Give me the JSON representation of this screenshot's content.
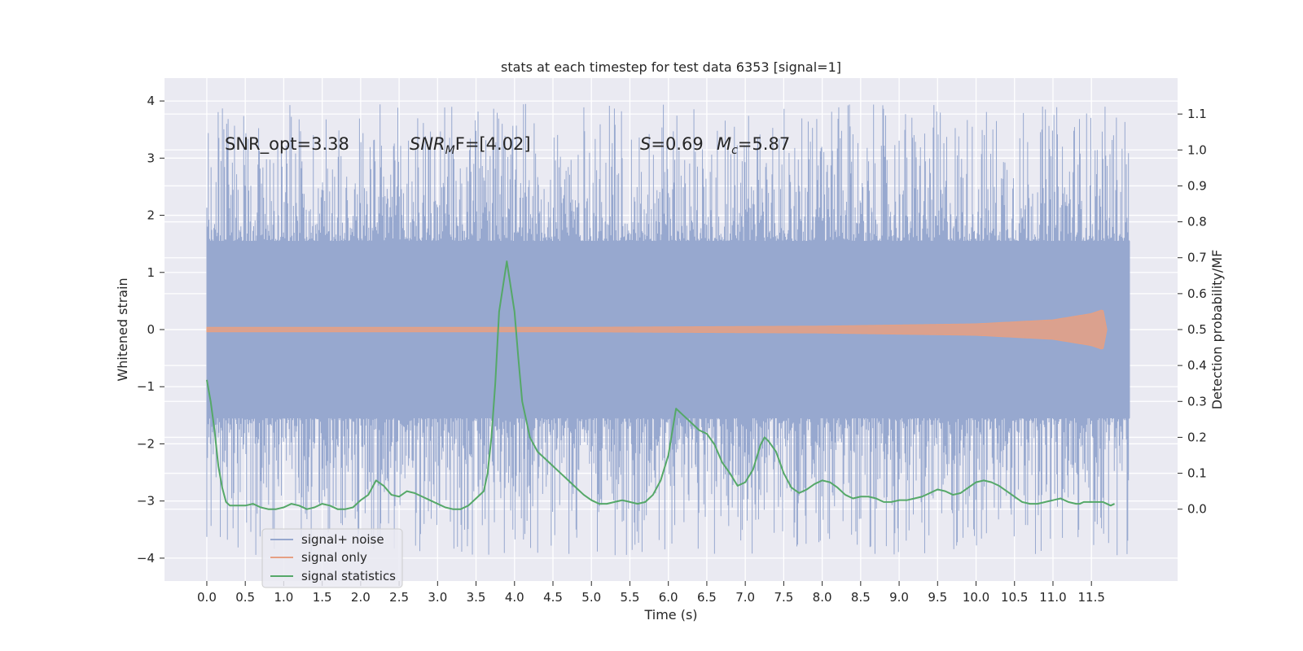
{
  "chart_data": {
    "type": "line",
    "title": "stats at each timestep for test data 6353 [signal=1]",
    "xlabel": "Time (s)",
    "ylabel_left": "Whitened strain",
    "ylabel_right": "Detection probability/MF",
    "xlim": [
      -0.55,
      12.62
    ],
    "ylim_left": [
      -4.4,
      4.4
    ],
    "ylim_right": [
      -0.2,
      1.2
    ],
    "x_ticks": [
      "0.0",
      "0.5",
      "1.0",
      "1.5",
      "2.0",
      "2.5",
      "3.0",
      "3.5",
      "4.0",
      "4.5",
      "5.0",
      "5.5",
      "6.0",
      "6.5",
      "7.0",
      "7.5",
      "8.0",
      "8.5",
      "9.0",
      "9.5",
      "10.0",
      "10.5",
      "11.0",
      "11.5"
    ],
    "y_ticks_left": [
      "4",
      "3",
      "2",
      "1",
      "0",
      "−1",
      "−2",
      "−3",
      "−4"
    ],
    "y_ticks_right": [
      "1.1",
      "1.0",
      "0.9",
      "0.8",
      "0.7",
      "0.6",
      "0.5",
      "0.4",
      "0.3",
      "0.2",
      "0.1",
      "0.0"
    ],
    "grid": true,
    "legend_position": "lower-left",
    "annotations": {
      "snr_opt": "SNR_opt=3.38",
      "snr_mf_base": "SNR",
      "snr_mf_sub": "M",
      "snr_mf_rest": "F=[4.02]",
      "s_label": "S",
      "s_value": "=0.69",
      "mc_base": "M",
      "mc_sub": "c",
      "mc_value": "=5.87"
    },
    "series": [
      {
        "name": "signal+ noise",
        "color": "#97a8cf",
        "axis": "left",
        "style": "noise-band",
        "x_range": [
          0.0,
          12.0
        ],
        "dense_band": [
          -1.55,
          1.55
        ],
        "spike_range": [
          -4.0,
          4.0
        ]
      },
      {
        "name": "signal only",
        "color": "#e6a083",
        "axis": "left",
        "style": "chirp",
        "x_range": [
          0.0,
          11.7
        ],
        "amplitude_profile": [
          {
            "x": 0.0,
            "amp": 0.04
          },
          {
            "x": 5.0,
            "amp": 0.04
          },
          {
            "x": 8.0,
            "amp": 0.06
          },
          {
            "x": 10.0,
            "amp": 0.1
          },
          {
            "x": 11.0,
            "amp": 0.17
          },
          {
            "x": 11.5,
            "amp": 0.28
          },
          {
            "x": 11.65,
            "amp": 0.35
          },
          {
            "x": 11.7,
            "amp": 0.0
          }
        ]
      },
      {
        "name": "signal statistics",
        "color": "#55a868",
        "axis": "right",
        "style": "line",
        "points": [
          [
            0.0,
            0.36
          ],
          [
            0.05,
            0.3
          ],
          [
            0.1,
            0.22
          ],
          [
            0.15,
            0.12
          ],
          [
            0.2,
            0.06
          ],
          [
            0.25,
            0.02
          ],
          [
            0.3,
            0.01
          ],
          [
            0.4,
            0.01
          ],
          [
            0.5,
            0.01
          ],
          [
            0.6,
            0.015
          ],
          [
            0.7,
            0.005
          ],
          [
            0.8,
            0.0
          ],
          [
            0.9,
            0.0
          ],
          [
            1.0,
            0.005
          ],
          [
            1.1,
            0.015
          ],
          [
            1.2,
            0.01
          ],
          [
            1.3,
            0.0
          ],
          [
            1.4,
            0.005
          ],
          [
            1.5,
            0.015
          ],
          [
            1.6,
            0.01
          ],
          [
            1.7,
            0.0
          ],
          [
            1.8,
            0.0
          ],
          [
            1.9,
            0.005
          ],
          [
            2.0,
            0.025
          ],
          [
            2.1,
            0.04
          ],
          [
            2.2,
            0.08
          ],
          [
            2.3,
            0.065
          ],
          [
            2.4,
            0.04
          ],
          [
            2.5,
            0.035
          ],
          [
            2.6,
            0.05
          ],
          [
            2.7,
            0.045
          ],
          [
            2.8,
            0.035
          ],
          [
            2.9,
            0.025
          ],
          [
            3.0,
            0.015
          ],
          [
            3.1,
            0.005
          ],
          [
            3.2,
            0.0
          ],
          [
            3.3,
            0.0
          ],
          [
            3.4,
            0.01
          ],
          [
            3.5,
            0.03
          ],
          [
            3.6,
            0.05
          ],
          [
            3.65,
            0.1
          ],
          [
            3.7,
            0.2
          ],
          [
            3.75,
            0.35
          ],
          [
            3.8,
            0.55
          ],
          [
            3.9,
            0.69
          ],
          [
            4.0,
            0.55
          ],
          [
            4.05,
            0.42
          ],
          [
            4.1,
            0.3
          ],
          [
            4.2,
            0.2
          ],
          [
            4.3,
            0.16
          ],
          [
            4.4,
            0.14
          ],
          [
            4.5,
            0.12
          ],
          [
            4.6,
            0.1
          ],
          [
            4.7,
            0.08
          ],
          [
            4.8,
            0.06
          ],
          [
            4.9,
            0.04
          ],
          [
            5.0,
            0.025
          ],
          [
            5.1,
            0.015
          ],
          [
            5.2,
            0.015
          ],
          [
            5.3,
            0.02
          ],
          [
            5.4,
            0.025
          ],
          [
            5.5,
            0.02
          ],
          [
            5.6,
            0.015
          ],
          [
            5.7,
            0.02
          ],
          [
            5.8,
            0.04
          ],
          [
            5.9,
            0.08
          ],
          [
            6.0,
            0.15
          ],
          [
            6.1,
            0.28
          ],
          [
            6.2,
            0.26
          ],
          [
            6.3,
            0.24
          ],
          [
            6.4,
            0.22
          ],
          [
            6.5,
            0.21
          ],
          [
            6.6,
            0.18
          ],
          [
            6.7,
            0.13
          ],
          [
            6.8,
            0.1
          ],
          [
            6.9,
            0.065
          ],
          [
            7.0,
            0.075
          ],
          [
            7.1,
            0.11
          ],
          [
            7.2,
            0.18
          ],
          [
            7.25,
            0.2
          ],
          [
            7.3,
            0.19
          ],
          [
            7.4,
            0.16
          ],
          [
            7.5,
            0.1
          ],
          [
            7.6,
            0.06
          ],
          [
            7.7,
            0.045
          ],
          [
            7.8,
            0.055
          ],
          [
            7.9,
            0.07
          ],
          [
            8.0,
            0.08
          ],
          [
            8.1,
            0.075
          ],
          [
            8.2,
            0.06
          ],
          [
            8.3,
            0.04
          ],
          [
            8.4,
            0.03
          ],
          [
            8.5,
            0.035
          ],
          [
            8.6,
            0.035
          ],
          [
            8.7,
            0.03
          ],
          [
            8.8,
            0.02
          ],
          [
            8.9,
            0.02
          ],
          [
            9.0,
            0.025
          ],
          [
            9.1,
            0.025
          ],
          [
            9.2,
            0.03
          ],
          [
            9.3,
            0.035
          ],
          [
            9.4,
            0.045
          ],
          [
            9.5,
            0.055
          ],
          [
            9.6,
            0.05
          ],
          [
            9.7,
            0.04
          ],
          [
            9.8,
            0.045
          ],
          [
            9.9,
            0.06
          ],
          [
            10.0,
            0.075
          ],
          [
            10.1,
            0.08
          ],
          [
            10.2,
            0.075
          ],
          [
            10.3,
            0.065
          ],
          [
            10.4,
            0.05
          ],
          [
            10.5,
            0.035
          ],
          [
            10.6,
            0.02
          ],
          [
            10.7,
            0.015
          ],
          [
            10.8,
            0.015
          ],
          [
            10.9,
            0.02
          ],
          [
            11.0,
            0.025
          ],
          [
            11.1,
            0.03
          ],
          [
            11.2,
            0.02
          ],
          [
            11.3,
            0.015
          ],
          [
            11.35,
            0.015
          ],
          [
            11.4,
            0.02
          ],
          [
            11.5,
            0.02
          ],
          [
            11.6,
            0.02
          ],
          [
            11.65,
            0.02
          ],
          [
            11.7,
            0.015
          ],
          [
            11.75,
            0.01
          ],
          [
            11.8,
            0.015
          ]
        ]
      }
    ]
  }
}
